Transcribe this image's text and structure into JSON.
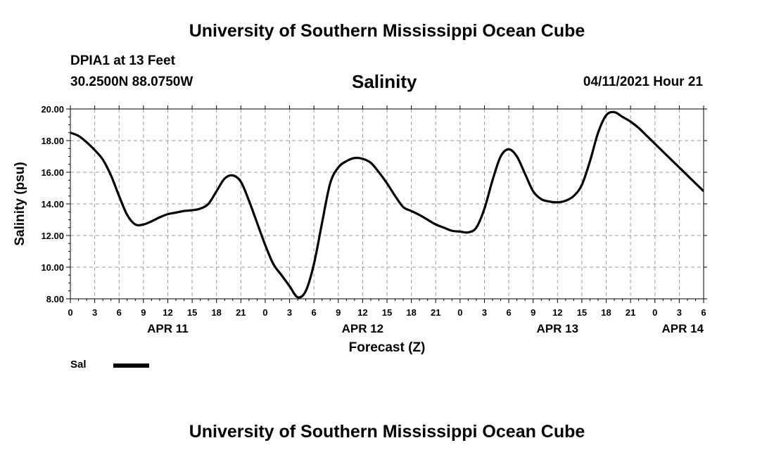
{
  "header": {
    "title": "University of Southern Mississippi Ocean Cube",
    "station": "DPIA1 at 13 Feet",
    "coordinates": "30.2500N  88.0750W",
    "parameter": "Salinity",
    "datetime": "04/11/2021 Hour 21"
  },
  "footer": {
    "title": "University of Southern Mississippi Ocean Cube"
  },
  "legend": {
    "label": "Sal",
    "color": "#000000"
  },
  "chart_data": {
    "type": "line",
    "title": "Salinity",
    "xlabel": "Forecast (Z)",
    "ylabel": "Salinity (psu)",
    "ylim": [
      8,
      20
    ],
    "xlim": [
      0,
      78
    ],
    "x_units": "hours since APR 11 00Z",
    "y_ticks": [
      "8.00",
      "10.00",
      "12.00",
      "14.00",
      "16.00",
      "18.00",
      "20.00"
    ],
    "x_tick_hours": [
      0,
      3,
      6,
      9,
      12,
      15,
      18,
      21,
      24,
      27,
      30,
      33,
      36,
      39,
      42,
      45,
      48,
      51,
      54,
      57,
      60,
      63,
      66,
      69,
      72,
      75,
      78
    ],
    "x_tick_labels": [
      "0",
      "3",
      "6",
      "9",
      "12",
      "15",
      "18",
      "21",
      "0",
      "3",
      "6",
      "9",
      "12",
      "15",
      "18",
      "21",
      "0",
      "3",
      "6",
      "9",
      "12",
      "15",
      "18",
      "21",
      "0",
      "3",
      "6"
    ],
    "day_labels": [
      {
        "hour": 12,
        "label": "APR 11"
      },
      {
        "hour": 36,
        "label": "APR 12"
      },
      {
        "hour": 60,
        "label": "APR 13"
      },
      {
        "hour": 78,
        "label": "APR 14"
      }
    ],
    "grid": true,
    "series": [
      {
        "name": "Sal",
        "color": "#000000",
        "x": [
          0,
          1,
          2,
          3,
          4,
          5,
          6,
          7,
          8,
          9,
          10,
          11,
          12,
          13,
          14,
          15,
          16,
          17,
          18,
          19,
          20,
          21,
          22,
          23,
          24,
          25,
          26,
          27,
          28,
          29,
          30,
          31,
          32,
          33,
          34,
          35,
          36,
          37,
          38,
          39,
          40,
          41,
          42,
          43,
          44,
          45,
          46,
          47,
          48,
          49,
          50,
          51,
          52,
          53,
          54,
          55,
          56,
          57,
          58,
          59,
          60,
          61,
          62,
          63,
          64,
          65,
          66,
          67,
          68,
          69,
          70,
          71,
          72,
          73,
          74,
          75,
          76,
          77,
          78
        ],
        "values": [
          18.5,
          18.3,
          17.9,
          17.4,
          16.8,
          15.8,
          14.5,
          13.3,
          12.7,
          12.7,
          12.9,
          13.15,
          13.35,
          13.45,
          13.55,
          13.6,
          13.7,
          14.0,
          14.8,
          15.6,
          15.8,
          15.4,
          14.2,
          12.8,
          11.4,
          10.2,
          9.5,
          8.8,
          8.1,
          8.5,
          10.2,
          12.8,
          15.3,
          16.3,
          16.7,
          16.9,
          16.85,
          16.6,
          16.0,
          15.3,
          14.5,
          13.8,
          13.55,
          13.3,
          13.0,
          12.7,
          12.5,
          12.3,
          12.25,
          12.2,
          12.5,
          13.7,
          15.5,
          17.0,
          17.45,
          17.0,
          15.9,
          14.8,
          14.3,
          14.15,
          14.1,
          14.2,
          14.5,
          15.2,
          16.7,
          18.5,
          19.6,
          19.8,
          19.5,
          19.2,
          18.8,
          18.3,
          17.8,
          17.3,
          16.8,
          16.3,
          15.8,
          15.3,
          14.8
        ]
      }
    ]
  }
}
